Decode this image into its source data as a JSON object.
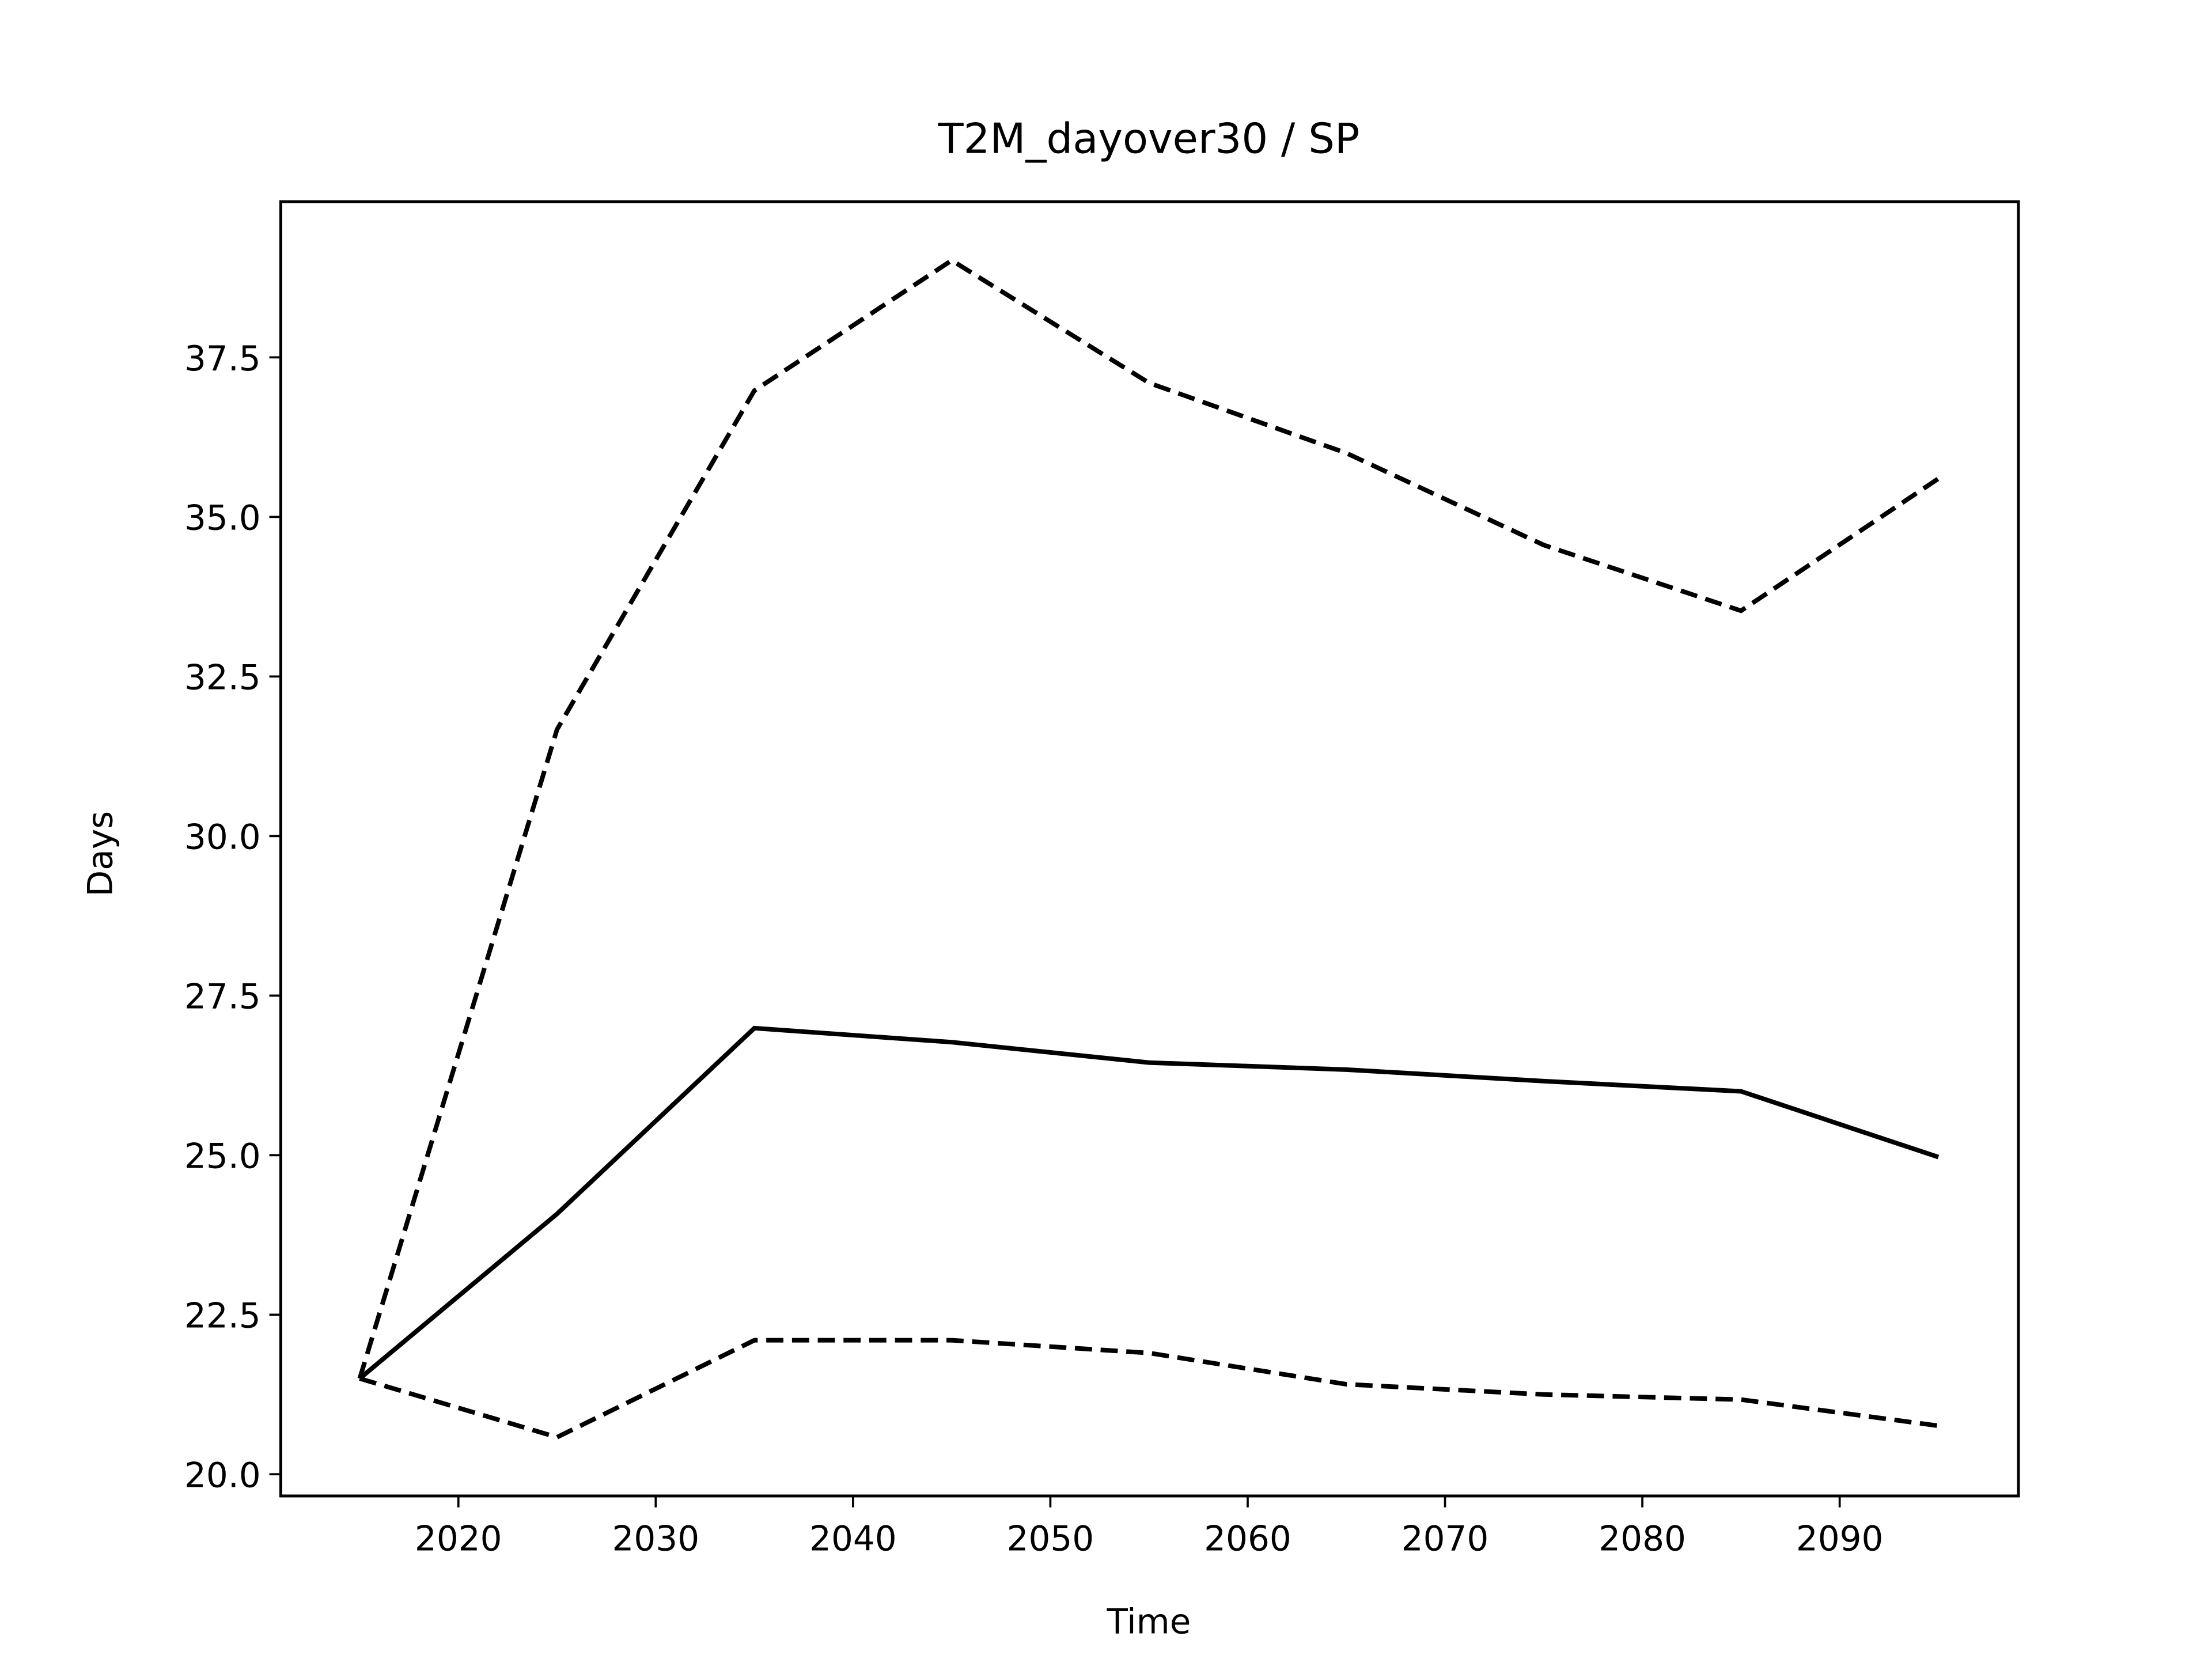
{
  "chart_data": {
    "type": "line",
    "title": "T2M_dayover30 / SP",
    "xlabel": "Time",
    "ylabel": "Days",
    "x": [
      2015,
      2025,
      2035,
      2045,
      2055,
      2065,
      2075,
      2085,
      2095
    ],
    "series": [
      {
        "color": "#000000",
        "linestyle": "solid",
        "values": [
          21.5,
          24.08,
          26.99,
          26.77,
          26.45,
          26.34,
          26.16,
          26.0,
          24.97
        ]
      },
      {
        "color": "#000000",
        "linestyle": "dashed",
        "values": [
          21.5,
          31.67,
          36.98,
          39.02,
          37.1,
          36.0,
          34.56,
          33.53,
          35.6
        ]
      },
      {
        "color": "#000000",
        "linestyle": "dashed",
        "values": [
          21.5,
          20.58,
          22.1,
          22.1,
          21.9,
          21.41,
          21.25,
          21.17,
          20.76
        ]
      }
    ],
    "xlim": [
      2011.0,
      2099.06
    ],
    "ylim": [
      19.66,
      39.94
    ],
    "xticks": [
      2020,
      2030,
      2040,
      2050,
      2060,
      2070,
      2080,
      2090
    ],
    "yticks": [
      {
        "value": 20,
        "label": "20.0"
      },
      {
        "value": 22.5,
        "label": "22.5"
      },
      {
        "value": 25,
        "label": "25.0"
      },
      {
        "value": 27.5,
        "label": "27.5"
      },
      {
        "value": 30,
        "label": "30.0"
      },
      {
        "value": 32.5,
        "label": "32.5"
      },
      {
        "value": 35,
        "label": "35.0"
      },
      {
        "value": 37.5,
        "label": "37.5"
      }
    ]
  }
}
